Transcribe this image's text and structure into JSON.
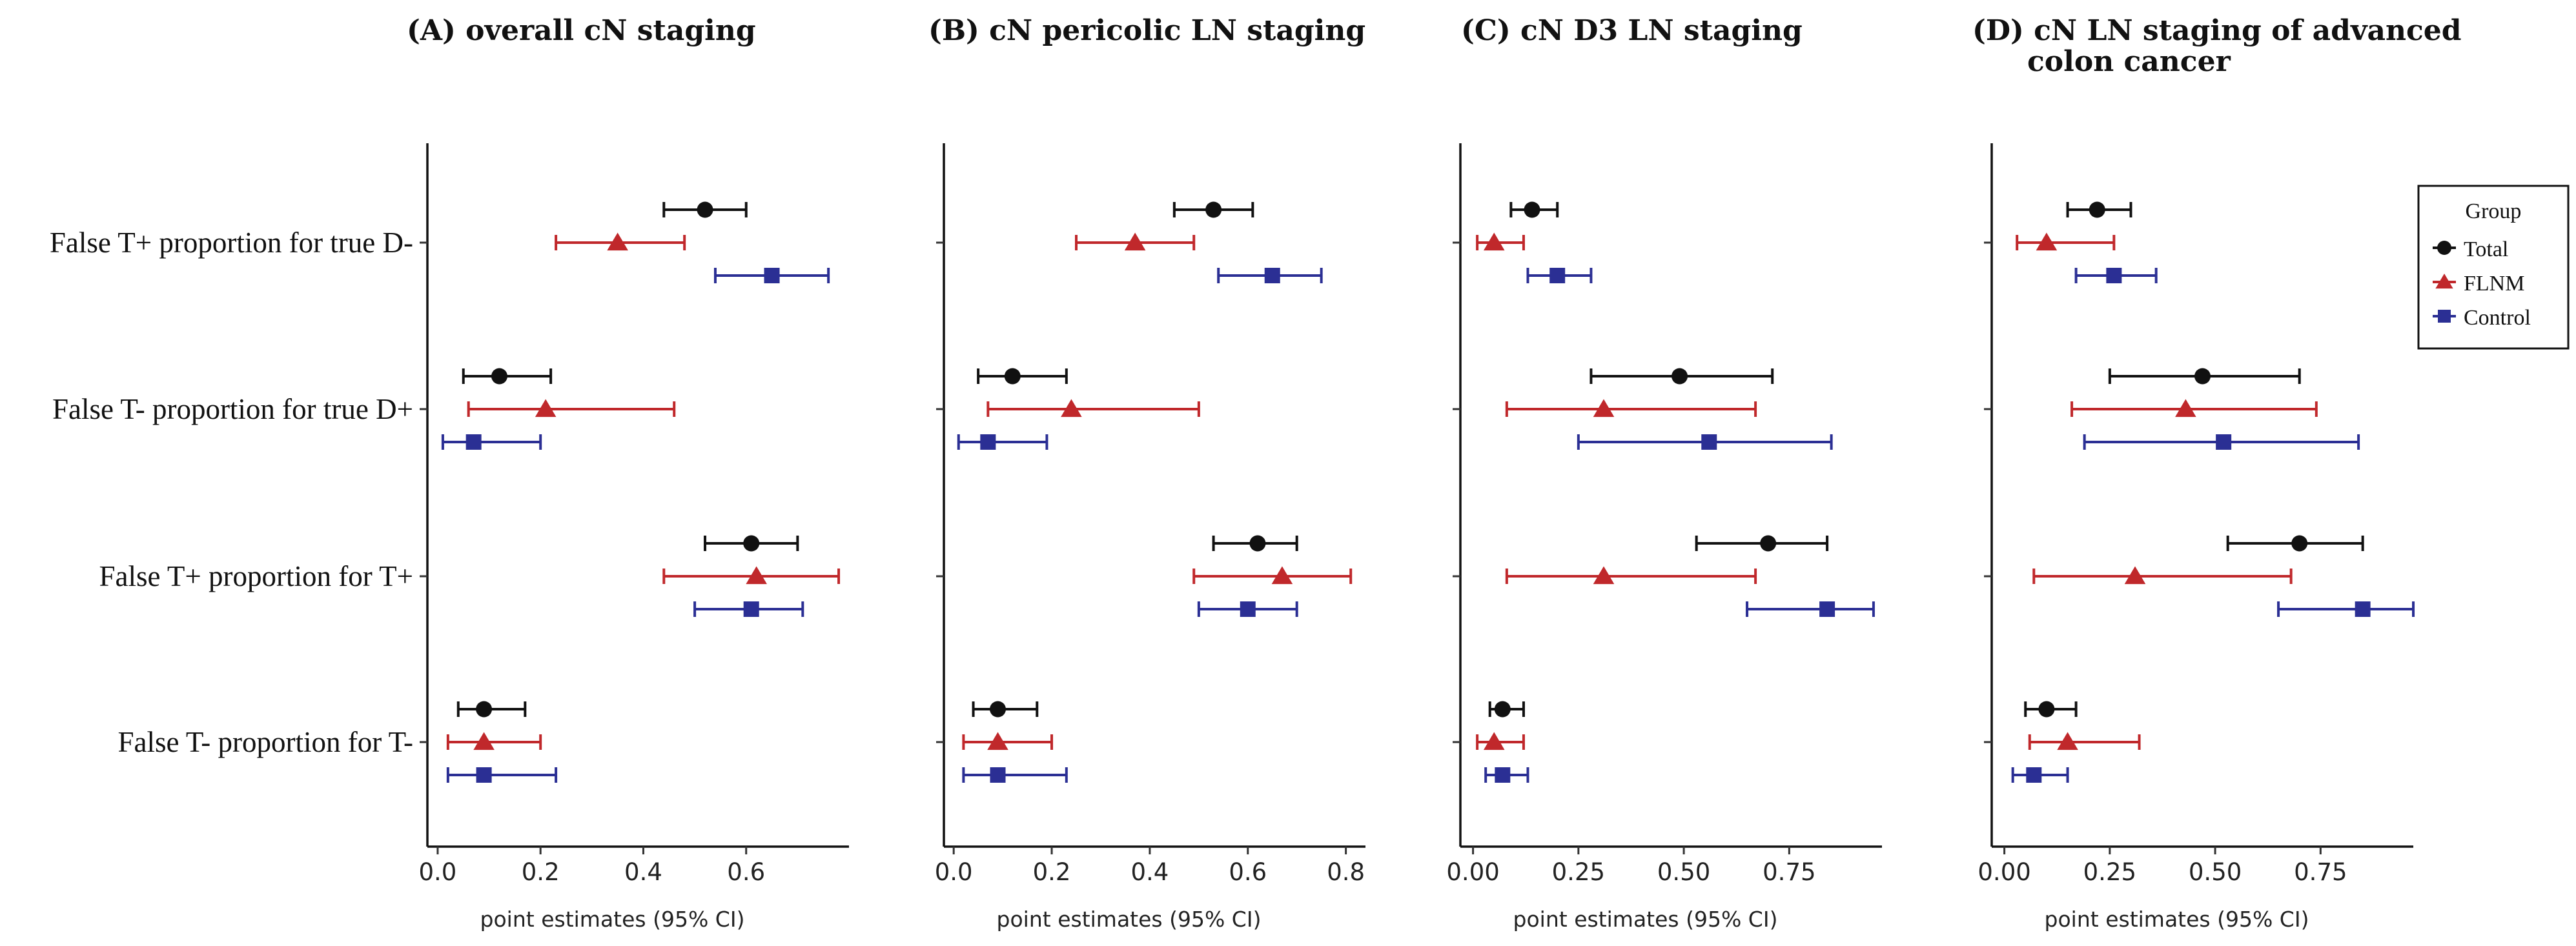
{
  "chart_data": {
    "type": "forest",
    "row_labels": [
      "False T+ proportion for true D-",
      "False T- proportion for true D+",
      "False T+ proportion for T+",
      "False T- proportion for T-"
    ],
    "legend": {
      "title": "Group",
      "placement": "right",
      "entries": [
        {
          "name": "Total",
          "color": "#111111",
          "marker": "circle"
        },
        {
          "name": "FLNM",
          "color": "#c0282b",
          "marker": "triangle"
        },
        {
          "name": "Control",
          "color": "#2b2f94",
          "marker": "square"
        }
      ]
    },
    "panels": [
      {
        "title_lines": [
          "(A) overall cN staging"
        ],
        "xlabel": "point estimates (95% CI)",
        "xlim": [
          -0.02,
          0.8
        ],
        "ticks": [
          0.0,
          0.2,
          0.4,
          0.6
        ],
        "tick_labels": [
          "0.0",
          "0.2",
          "0.4",
          "0.6"
        ],
        "estimates": [
          [
            {
              "group": "Total",
              "est": 0.52,
              "lo": 0.44,
              "hi": 0.6
            },
            {
              "group": "FLNM",
              "est": 0.35,
              "lo": 0.23,
              "hi": 0.48
            },
            {
              "group": "Control",
              "est": 0.65,
              "lo": 0.54,
              "hi": 0.76
            }
          ],
          [
            {
              "group": "Total",
              "est": 0.12,
              "lo": 0.05,
              "hi": 0.22
            },
            {
              "group": "FLNM",
              "est": 0.21,
              "lo": 0.06,
              "hi": 0.46
            },
            {
              "group": "Control",
              "est": 0.07,
              "lo": 0.01,
              "hi": 0.2
            }
          ],
          [
            {
              "group": "Total",
              "est": 0.61,
              "lo": 0.52,
              "hi": 0.7
            },
            {
              "group": "FLNM",
              "est": 0.62,
              "lo": 0.44,
              "hi": 0.78
            },
            {
              "group": "Control",
              "est": 0.61,
              "lo": 0.5,
              "hi": 0.71
            }
          ],
          [
            {
              "group": "Total",
              "est": 0.09,
              "lo": 0.04,
              "hi": 0.17
            },
            {
              "group": "FLNM",
              "est": 0.09,
              "lo": 0.02,
              "hi": 0.2
            },
            {
              "group": "Control",
              "est": 0.09,
              "lo": 0.02,
              "hi": 0.23
            }
          ]
        ]
      },
      {
        "title_lines": [
          "(B) cN pericolic LN staging"
        ],
        "xlabel": "point estimates (95% CI)",
        "xlim": [
          -0.02,
          0.84
        ],
        "ticks": [
          0.0,
          0.2,
          0.4,
          0.6,
          0.8
        ],
        "tick_labels": [
          "0.0",
          "0.2",
          "0.4",
          "0.6",
          "0.8"
        ],
        "estimates": [
          [
            {
              "group": "Total",
              "est": 0.53,
              "lo": 0.45,
              "hi": 0.61
            },
            {
              "group": "FLNM",
              "est": 0.37,
              "lo": 0.25,
              "hi": 0.49
            },
            {
              "group": "Control",
              "est": 0.65,
              "lo": 0.54,
              "hi": 0.75
            }
          ],
          [
            {
              "group": "Total",
              "est": 0.12,
              "lo": 0.05,
              "hi": 0.23
            },
            {
              "group": "FLNM",
              "est": 0.24,
              "lo": 0.07,
              "hi": 0.5
            },
            {
              "group": "Control",
              "est": 0.07,
              "lo": 0.01,
              "hi": 0.19
            }
          ],
          [
            {
              "group": "Total",
              "est": 0.62,
              "lo": 0.53,
              "hi": 0.7
            },
            {
              "group": "FLNM",
              "est": 0.67,
              "lo": 0.49,
              "hi": 0.81
            },
            {
              "group": "Control",
              "est": 0.6,
              "lo": 0.5,
              "hi": 0.7
            }
          ],
          [
            {
              "group": "Total",
              "est": 0.09,
              "lo": 0.04,
              "hi": 0.17
            },
            {
              "group": "FLNM",
              "est": 0.09,
              "lo": 0.02,
              "hi": 0.2
            },
            {
              "group": "Control",
              "est": 0.09,
              "lo": 0.02,
              "hi": 0.23
            }
          ]
        ]
      },
      {
        "title_lines": [
          "(C) cN D3 LN staging"
        ],
        "xlabel": "point estimates (95% CI)",
        "xlim": [
          -0.03,
          0.97
        ],
        "ticks": [
          0.0,
          0.25,
          0.5,
          0.75
        ],
        "tick_labels": [
          "0.00",
          "0.25",
          "0.50",
          "0.75"
        ],
        "estimates": [
          [
            {
              "group": "Total",
              "est": 0.14,
              "lo": 0.09,
              "hi": 0.2
            },
            {
              "group": "FLNM",
              "est": 0.05,
              "lo": 0.01,
              "hi": 0.12
            },
            {
              "group": "Control",
              "est": 0.2,
              "lo": 0.13,
              "hi": 0.28
            }
          ],
          [
            {
              "group": "Total",
              "est": 0.49,
              "lo": 0.28,
              "hi": 0.71
            },
            {
              "group": "FLNM",
              "est": 0.31,
              "lo": 0.08,
              "hi": 0.67
            },
            {
              "group": "Control",
              "est": 0.56,
              "lo": 0.25,
              "hi": 0.85
            }
          ],
          [
            {
              "group": "Total",
              "est": 0.7,
              "lo": 0.53,
              "hi": 0.84
            },
            {
              "group": "FLNM",
              "est": 0.31,
              "lo": 0.08,
              "hi": 0.67
            },
            {
              "group": "Control",
              "est": 0.84,
              "lo": 0.65,
              "hi": 0.95
            }
          ],
          [
            {
              "group": "Total",
              "est": 0.07,
              "lo": 0.04,
              "hi": 0.12
            },
            {
              "group": "FLNM",
              "est": 0.05,
              "lo": 0.01,
              "hi": 0.12
            },
            {
              "group": "Control",
              "est": 0.07,
              "lo": 0.03,
              "hi": 0.13
            }
          ]
        ]
      },
      {
        "title_lines": [
          "(D) cN LN staging of advanced",
          "colon cancer"
        ],
        "xlabel": "point estimates (95% CI)",
        "xlim": [
          -0.03,
          0.97
        ],
        "ticks": [
          0.0,
          0.25,
          0.5,
          0.75
        ],
        "tick_labels": [
          "0.00",
          "0.25",
          "0.50",
          "0.75"
        ],
        "estimates": [
          [
            {
              "group": "Total",
              "est": 0.22,
              "lo": 0.15,
              "hi": 0.3
            },
            {
              "group": "FLNM",
              "est": 0.1,
              "lo": 0.03,
              "hi": 0.26
            },
            {
              "group": "Control",
              "est": 0.26,
              "lo": 0.17,
              "hi": 0.36
            }
          ],
          [
            {
              "group": "Total",
              "est": 0.47,
              "lo": 0.25,
              "hi": 0.7
            },
            {
              "group": "FLNM",
              "est": 0.43,
              "lo": 0.16,
              "hi": 0.74
            },
            {
              "group": "Control",
              "est": 0.52,
              "lo": 0.19,
              "hi": 0.84
            }
          ],
          [
            {
              "group": "Total",
              "est": 0.7,
              "lo": 0.53,
              "hi": 0.85
            },
            {
              "group": "FLNM",
              "est": 0.31,
              "lo": 0.07,
              "hi": 0.68
            },
            {
              "group": "Control",
              "est": 0.85,
              "lo": 0.65,
              "hi": 0.97
            }
          ],
          [
            {
              "group": "Total",
              "est": 0.1,
              "lo": 0.05,
              "hi": 0.17
            },
            {
              "group": "FLNM",
              "est": 0.15,
              "lo": 0.06,
              "hi": 0.32
            },
            {
              "group": "Control",
              "est": 0.07,
              "lo": 0.02,
              "hi": 0.15
            }
          ]
        ]
      }
    ]
  }
}
